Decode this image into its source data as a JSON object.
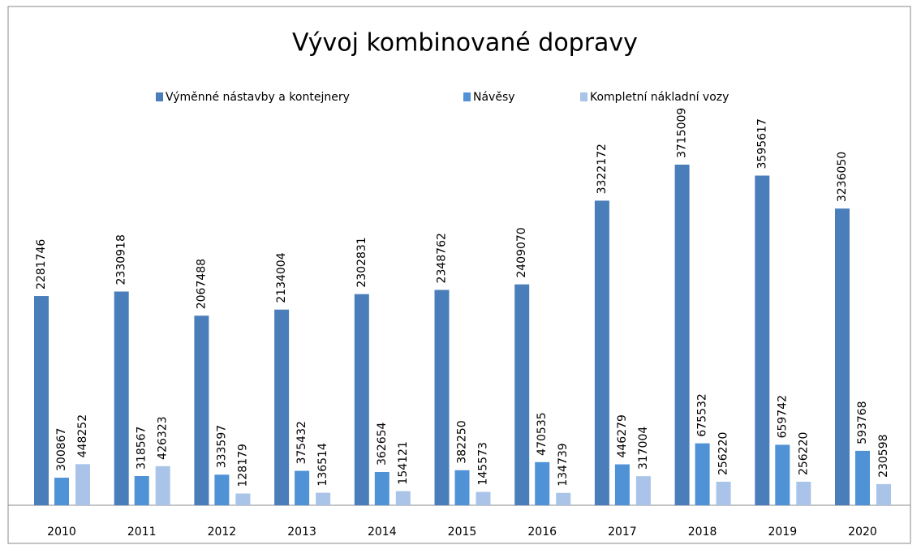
{
  "chart_data": {
    "type": "bar",
    "title": "Vývoj kombinované dopravy",
    "categories": [
      "2010",
      "2011",
      "2012",
      "2013",
      "2014",
      "2015",
      "2016",
      "2017",
      "2018",
      "2019",
      "2020"
    ],
    "series": [
      {
        "name": "Výměnné nástavby a kontejnery",
        "color": "#4a7ebb",
        "values": [
          2281746,
          2330918,
          2067488,
          2134004,
          2302831,
          2348762,
          2409070,
          3322172,
          3715009,
          3595617,
          3236050
        ]
      },
      {
        "name": "Návěsy",
        "color": "#4f92d6",
        "values": [
          300867,
          318567,
          333597,
          375432,
          362654,
          382250,
          470535,
          446279,
          675532,
          659742,
          593768
        ]
      },
      {
        "name": "Kompletní nákladní vozy",
        "color": "#a9c4e8",
        "values": [
          448252,
          426323,
          128179,
          136514,
          154121,
          145573,
          134739,
          317004,
          256220,
          256220,
          230598
        ]
      }
    ],
    "legend": "top"
  }
}
